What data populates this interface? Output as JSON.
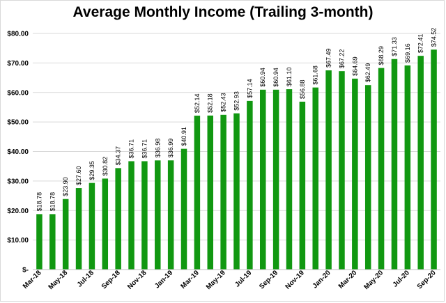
{
  "chart_data": {
    "type": "bar",
    "title": "Average Monthly Income (Trailing 3-month)",
    "xlabel": "",
    "ylabel": "",
    "ylim": [
      0,
      80
    ],
    "y_ticks": [
      0,
      10,
      20,
      30,
      40,
      50,
      60,
      70,
      80
    ],
    "y_tick_labels": [
      "$-",
      "$10.00",
      "$20.00",
      "$30.00",
      "$40.00",
      "$50.00",
      "$60.00",
      "$70.00",
      "$80.00"
    ],
    "grid": true,
    "bar_color": "#119811",
    "categories": [
      "Mar-18",
      "Apr-18",
      "May-18",
      "Jun-18",
      "Jul-18",
      "Aug-18",
      "Sep-18",
      "Oct-18",
      "Nov-18",
      "Dec-18",
      "Jan-19",
      "Feb-19",
      "Mar-19",
      "Apr-19",
      "May-19",
      "Jun-19",
      "Jul-19",
      "Aug-19",
      "Sep-19",
      "Oct-19",
      "Nov-19",
      "Dec-19",
      "Jan-20",
      "Feb-20",
      "Mar-20",
      "Apr-20",
      "May-20",
      "Jun-20",
      "Jul-20",
      "Aug-20",
      "Sep-20"
    ],
    "shown_x_labels": [
      "Mar-18",
      "",
      "May-18",
      "",
      "Jul-18",
      "",
      "Sep-18",
      "",
      "Nov-18",
      "",
      "Jan-19",
      "",
      "Mar-19",
      "",
      "May-19",
      "",
      "Jul-19",
      "",
      "Sep-19",
      "",
      "Nov-19",
      "",
      "Jan-20",
      "",
      "Mar-20",
      "",
      "May-20",
      "",
      "Jul-20",
      "",
      "Sep-20"
    ],
    "values": [
      18.78,
      18.78,
      23.9,
      27.6,
      29.35,
      30.82,
      34.37,
      36.71,
      36.71,
      36.98,
      36.99,
      40.91,
      52.14,
      52.18,
      52.43,
      52.93,
      57.14,
      60.94,
      60.94,
      61.1,
      56.88,
      61.68,
      67.49,
      67.22,
      64.69,
      62.49,
      68.29,
      71.33,
      69.16,
      72.41,
      74.52
    ],
    "data_labels": [
      "$18.78",
      "$18.78",
      "$23.90",
      "$27.60",
      "$29.35",
      "$30.82",
      "$34.37",
      "$36.71",
      "$36.71",
      "$36.98",
      "$36.99",
      "$40.91",
      "$52.14",
      "$52.18",
      "$52.43",
      "$52.93",
      "$57.14",
      "$60.94",
      "$60.94",
      "$61.10",
      "$56.88",
      "$61.68",
      "$67.49",
      "$67.22",
      "$64.69",
      "$62.49",
      "$68.29",
      "$71.33",
      "$69.16",
      "$72.41",
      "$74.52"
    ]
  }
}
